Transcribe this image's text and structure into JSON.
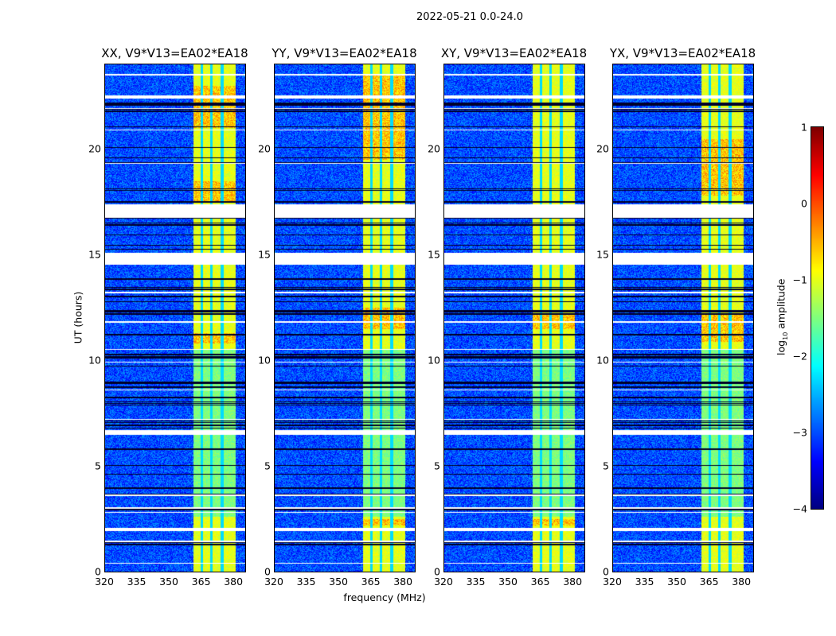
{
  "chart_data": {
    "type": "heatmap",
    "suptitle": "2022-05-21 0.0-24.0",
    "panels": [
      {
        "title": "XX, V9*V13=EA02*EA18",
        "band_peak_hours": [
          [
            10.8,
            11.3
          ],
          [
            17.5,
            18.5
          ],
          [
            21.0,
            23.0
          ]
        ]
      },
      {
        "title": "YY, V9*V13=EA02*EA18",
        "band_peak_hours": [
          [
            11.5,
            12.5
          ],
          [
            2.2,
            2.5
          ],
          [
            19.5,
            23.5
          ]
        ]
      },
      {
        "title": "XY, V9*V13=EA02*EA18",
        "band_peak_hours": [
          [
            11.5,
            12.2
          ],
          [
            2.2,
            2.5
          ]
        ]
      },
      {
        "title": "YX, V9*V13=EA02*EA18",
        "band_peak_hours": [
          [
            10.9,
            12.2
          ],
          [
            17.8,
            20.5
          ]
        ]
      }
    ],
    "xlabel": "frequency (MHz)",
    "ylabel": "UT (hours)",
    "xlim": [
      320,
      385.5
    ],
    "ylim": [
      0,
      24
    ],
    "xticks": [
      "320",
      "335",
      "350",
      "365",
      "380"
    ],
    "xtick_values": [
      320,
      335,
      350,
      365,
      380
    ],
    "yticks": [
      "0",
      "5",
      "10",
      "15",
      "20"
    ],
    "ytick_values": [
      0,
      5,
      10,
      15,
      20
    ],
    "bright_band_mhz": [
      361,
      381
    ],
    "band_gaps_mhz": [
      365,
      369.5,
      374.5
    ],
    "background_log_amp": -3.0,
    "band_log_amp": -1.0,
    "flagged_hours": [
      [
        16.75,
        17.4
      ],
      [
        14.55,
        15.1
      ],
      [
        6.5,
        6.7
      ],
      [
        22.4,
        22.55
      ],
      [
        1.95,
        2.1
      ],
      [
        1.4,
        1.5
      ],
      [
        0.4,
        0.45
      ],
      [
        2.8,
        2.85
      ],
      [
        3.0,
        3.05
      ],
      [
        3.6,
        3.65
      ],
      [
        7.2,
        7.25
      ],
      [
        8.6,
        8.65
      ],
      [
        9.9,
        9.95
      ],
      [
        10.5,
        10.55
      ],
      [
        11.8,
        11.85
      ],
      [
        13.2,
        13.25
      ],
      [
        19.3,
        19.35
      ],
      [
        20.9,
        20.95
      ],
      [
        21.9,
        21.95
      ],
      [
        23.5,
        23.55
      ]
    ],
    "colorbar": {
      "label": "log10 amplitude",
      "label_main": "log",
      "label_sub": "10",
      "label_rest": " amplitude",
      "ticks": [
        "1",
        "0",
        "−1",
        "−2",
        "−3",
        "−4"
      ],
      "tick_values": [
        1,
        0,
        -1,
        -2,
        -3,
        -4
      ],
      "range": [
        -4,
        1
      ],
      "colormap": "jet"
    }
  }
}
